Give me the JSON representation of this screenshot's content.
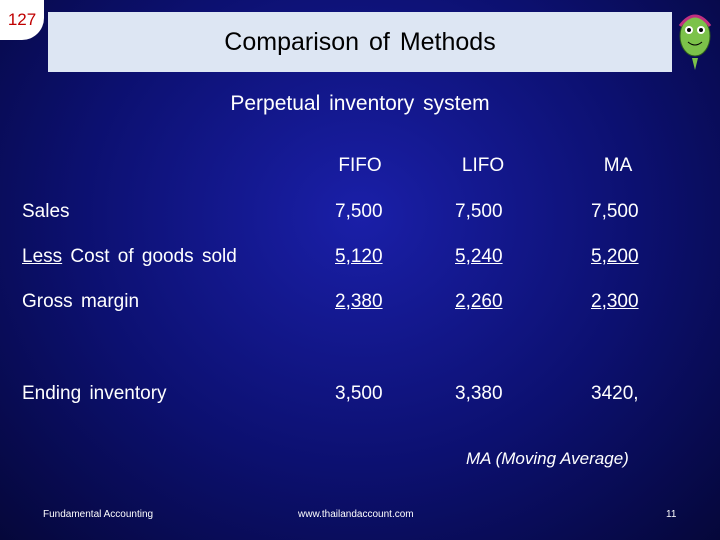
{
  "slide_number": "127",
  "header": {
    "title": "Comparison of Methods"
  },
  "subtitle": "Perpetual inventory system",
  "table": {
    "columns": [
      "FIFO",
      "LIFO",
      "MA"
    ],
    "rows": [
      {
        "label": "Sales",
        "cells": [
          "7,500",
          "7,500",
          "7,500"
        ]
      },
      {
        "label": [
          "Less",
          "Cost of goods sold"
        ],
        "cells": [
          "5,120",
          "5,240",
          "5,200"
        ]
      },
      {
        "label": "Gross margin",
        "cells": [
          "2,380",
          "2,260",
          "2,300"
        ]
      },
      {
        "label": "Ending inventory",
        "cells": [
          "3,500",
          "3,380",
          "3420,"
        ]
      }
    ]
  },
  "note": "MA (Moving Average)",
  "footer": {
    "left": "Fundamental Accounting",
    "center": "www.thailandaccount.com",
    "page": "11"
  }
}
